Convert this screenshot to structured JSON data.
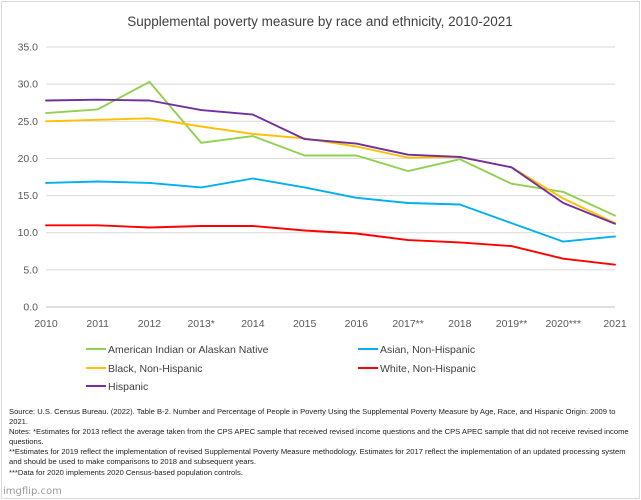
{
  "chart_data": {
    "type": "line",
    "title": "Supplemental poverty measure by race and ethnicity, 2010-2021",
    "xlabel": "",
    "ylabel": "",
    "ylim": [
      0,
      35
    ],
    "yticks": [
      "0.0",
      "5.0",
      "10.0",
      "15.0",
      "20.0",
      "25.0",
      "30.0",
      "35.0"
    ],
    "categories": [
      "2010",
      "2011",
      "2012",
      "2013*",
      "2014",
      "2015",
      "2016",
      "2017**",
      "2018",
      "2019**",
      "2020***",
      "2021"
    ],
    "grid": true,
    "legend_position": "bottom",
    "series": [
      {
        "name": "American Indian or Alaskan Native",
        "color": "#92d050",
        "values": [
          26.1,
          26.6,
          30.3,
          22.1,
          23.0,
          20.4,
          20.4,
          18.3,
          19.9,
          16.6,
          15.5,
          12.3
        ]
      },
      {
        "name": "Asian, Non-Hispanic",
        "color": "#00b0f0",
        "values": [
          16.7,
          16.9,
          16.7,
          16.1,
          17.3,
          16.1,
          14.7,
          14.0,
          13.8,
          11.3,
          8.8,
          9.5
        ]
      },
      {
        "name": "Black, Non-Hispanic",
        "color": "#ffc000",
        "values": [
          25.0,
          25.2,
          25.4,
          24.3,
          23.3,
          22.7,
          21.6,
          20.1,
          20.2,
          18.8,
          14.6,
          11.3
        ]
      },
      {
        "name": "White, Non-Hispanic",
        "color": "#ff0000",
        "values": [
          11.0,
          11.0,
          10.7,
          10.9,
          10.9,
          10.3,
          9.9,
          9.0,
          8.7,
          8.2,
          6.5,
          5.7
        ]
      },
      {
        "name": "Hispanic",
        "color": "#7030a0",
        "values": [
          27.8,
          27.9,
          27.8,
          26.5,
          25.9,
          22.6,
          22.0,
          20.5,
          20.2,
          18.8,
          14.0,
          11.2
        ]
      }
    ]
  },
  "source_notes": [
    "Source: U.S. Census Bureau. (2022). Table B-2. Number and Percentage of People in Poverty Using the Supplemental Poverty Measure by Age, Race, and Hispanic Origin: 2009 to 2021.",
    "Notes: *Estimates for 2013 reflect the average taken from the CPS APEC sample that received revised income questions and the CPS APEC sample that did not receive revised income questions.",
    "**Estimates for 2019 reflect the implementation of revised Supplemental Poverty Measure methodology. Estimates for 2017 reflect the implementation of an updated processing system and should be used to make comparisons to 2018 and subsequent years.",
    "***Data for 2020 implements 2020 Census-based population controls."
  ],
  "watermark": "imgflip.com"
}
